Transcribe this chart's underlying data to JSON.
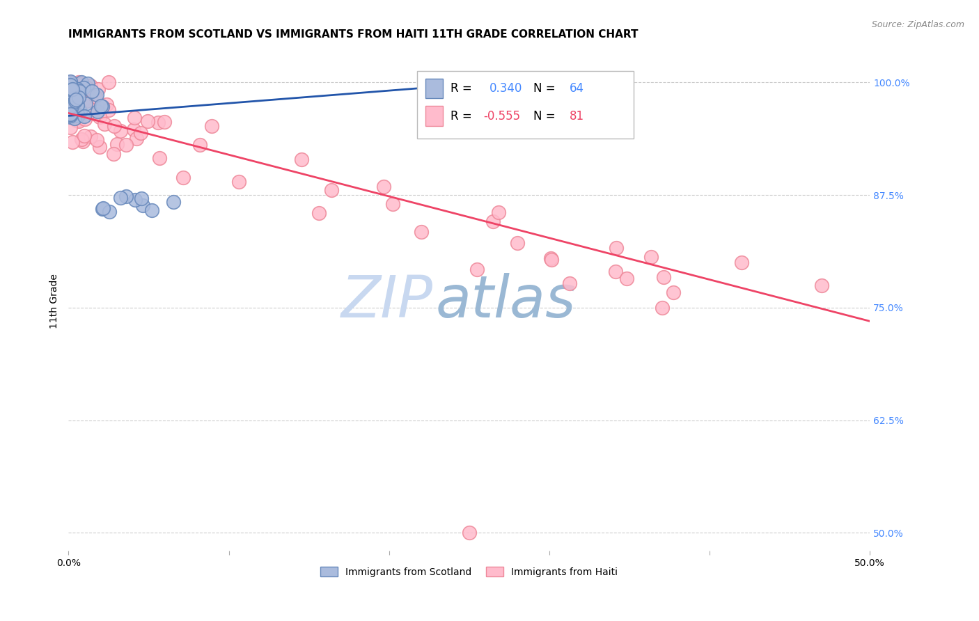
{
  "title": "IMMIGRANTS FROM SCOTLAND VS IMMIGRANTS FROM HAITI 11TH GRADE CORRELATION CHART",
  "source": "Source: ZipAtlas.com",
  "ylabel": "11th Grade",
  "ytick_labels": [
    "100.0%",
    "87.5%",
    "75.0%",
    "62.5%",
    "50.0%"
  ],
  "ytick_values": [
    1.0,
    0.875,
    0.75,
    0.625,
    0.5
  ],
  "xlim": [
    0.0,
    0.5
  ],
  "ylim": [
    0.48,
    1.035
  ],
  "scotland_R": 0.34,
  "scotland_N": 64,
  "haiti_R": -0.555,
  "haiti_N": 81,
  "scotland_face_color": "#aabbdd",
  "scotland_edge_color": "#6688bb",
  "haiti_face_color": "#ffbbcc",
  "haiti_edge_color": "#ee8899",
  "scotland_line_color": "#2255aa",
  "haiti_line_color": "#ee4466",
  "background_color": "#ffffff",
  "grid_color": "#cccccc",
  "watermark_zip_color": "#c8d8ee",
  "watermark_atlas_color": "#9ab8d8",
  "title_fontsize": 11,
  "axis_label_fontsize": 10,
  "tick_fontsize": 10,
  "legend_fontsize": 12,
  "scot_line_x0": 0.0,
  "scot_line_x1": 0.3,
  "scot_line_y0": 0.963,
  "scot_line_y1": 1.005,
  "haiti_line_x0": 0.0,
  "haiti_line_x1": 0.5,
  "haiti_line_y0": 0.966,
  "haiti_line_y1": 0.735
}
